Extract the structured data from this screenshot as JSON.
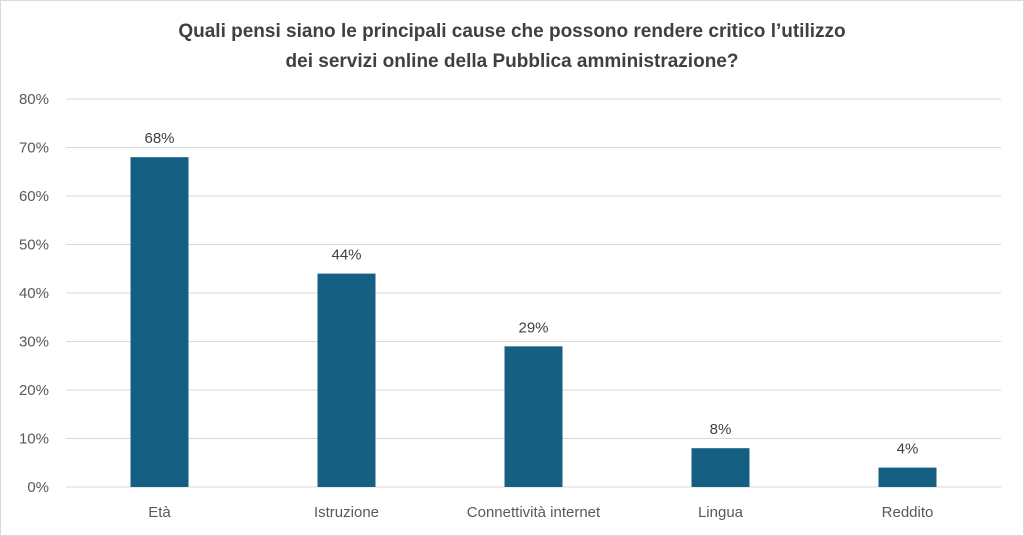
{
  "chart_data": {
    "type": "bar",
    "title": [
      "Quali pensi siano le principali cause che possono rendere critico l’utilizzo",
      "dei servizi online della Pubblica amministrazione?"
    ],
    "categories": [
      "Età",
      "Istruzione",
      "Connettività internet",
      "Lingua",
      "Reddito"
    ],
    "values": [
      68,
      44,
      29,
      8,
      4
    ],
    "data_labels": [
      "68%",
      "44%",
      "29%",
      "8%",
      "4%"
    ],
    "y_ticks": [
      "0%",
      "10%",
      "20%",
      "30%",
      "40%",
      "50%",
      "60%",
      "70%",
      "80%"
    ],
    "ylim": [
      0,
      80
    ],
    "grid": true,
    "legend": "none",
    "bar_color": "#155f82",
    "grid_color": "#d9d9d9"
  }
}
